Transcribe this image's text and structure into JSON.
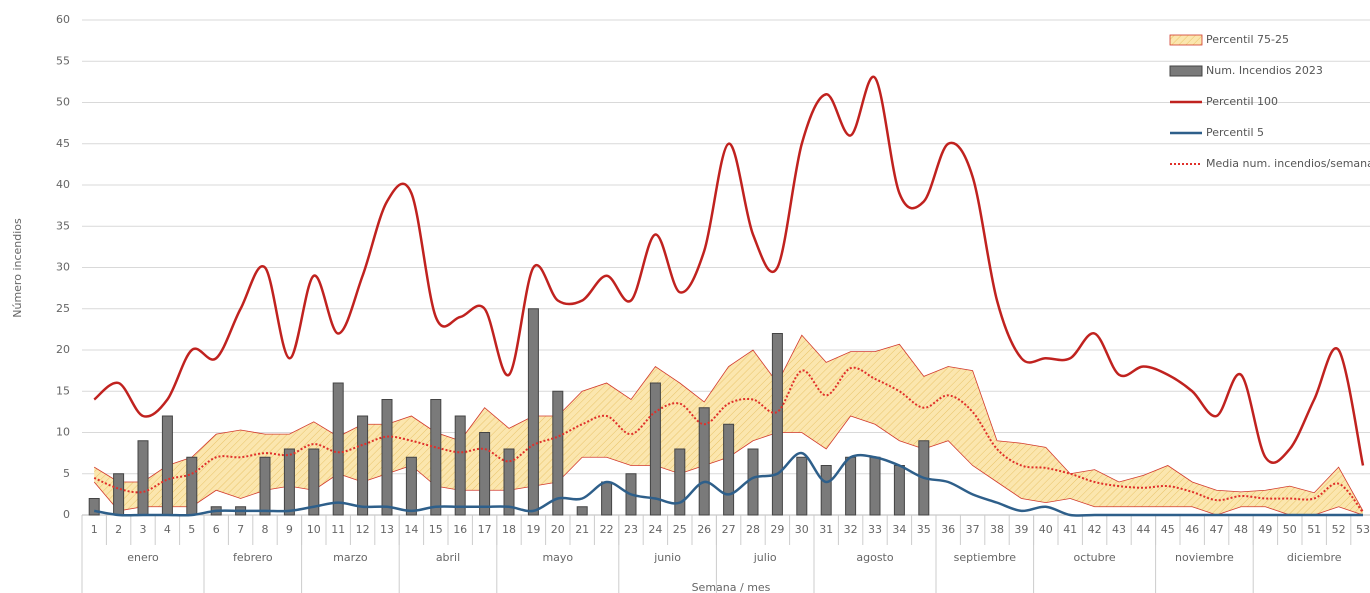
{
  "chart_data": {
    "type": "combo",
    "y_label": "Número incendios",
    "x_label": "Semana / mes",
    "categories": [
      "1",
      "2",
      "3",
      "4",
      "5",
      "6",
      "7",
      "8",
      "9",
      "10",
      "11",
      "12",
      "13",
      "14",
      "15",
      "16",
      "17",
      "18",
      "19",
      "20",
      "21",
      "22",
      "23",
      "24",
      "25",
      "26",
      "27",
      "28",
      "29",
      "30",
      "31",
      "32",
      "33",
      "34",
      "35",
      "36",
      "37",
      "38",
      "39",
      "40",
      "41",
      "42",
      "43",
      "44",
      "45",
      "46",
      "47",
      "48",
      "49",
      "50",
      "51",
      "52",
      "53"
    ],
    "month_groups": [
      {
        "label": "enero",
        "span": 5
      },
      {
        "label": "febrero",
        "span": 4
      },
      {
        "label": "marzo",
        "span": 4
      },
      {
        "label": "abril",
        "span": 4
      },
      {
        "label": "mayo",
        "span": 5
      },
      {
        "label": "junio",
        "span": 4
      },
      {
        "label": "julio",
        "span": 4
      },
      {
        "label": "agosto",
        "span": 5
      },
      {
        "label": "septiembre",
        "span": 4
      },
      {
        "label": "octubre",
        "span": 5
      },
      {
        "label": "noviembre",
        "span": 4
      },
      {
        "label": "diciembre",
        "span": 5
      }
    ],
    "ylim": [
      0,
      60
    ],
    "yticks": [
      0,
      5,
      10,
      15,
      20,
      25,
      30,
      35,
      40,
      45,
      50,
      55,
      60
    ],
    "grid": true,
    "legend": "top-right",
    "band": {
      "name": "Percentil 75-25",
      "color": "#fbe6ae",
      "edge": "#d23a2e",
      "upper": [
        5.8,
        4,
        4,
        6,
        7,
        9.8,
        10.3,
        9.8,
        9.8,
        11.3,
        9.5,
        11,
        11,
        12,
        10,
        9,
        13,
        10.5,
        12,
        12,
        15,
        16,
        14,
        18,
        16,
        13.7,
        18,
        20,
        16,
        21.8,
        18.5,
        19.8,
        19.8,
        20.7,
        16.8,
        18,
        17.5,
        9,
        8.7,
        8.2,
        5,
        5.5,
        4,
        4.8,
        6,
        4,
        3,
        2.8,
        3,
        3.5,
        2.7,
        5.8,
        0.5
      ],
      "lower": [
        4,
        0.5,
        1,
        1,
        1,
        3,
        2,
        3,
        3.5,
        3,
        5,
        4,
        5,
        6,
        3.5,
        3,
        3,
        3,
        3.5,
        4,
        7,
        7,
        6,
        6,
        5,
        6,
        7,
        9,
        10,
        10,
        8,
        12,
        11,
        9,
        8,
        9,
        6,
        4,
        2,
        1.5,
        2,
        1,
        1,
        1,
        1,
        1,
        0,
        1,
        1,
        0,
        0,
        1,
        0
      ]
    },
    "bars": {
      "name": "Num. Incendios 2023",
      "color": "#7a7a7a",
      "values": [
        2,
        5,
        9,
        12,
        7,
        1,
        1,
        7,
        8,
        8,
        16,
        12,
        14,
        7,
        14,
        12,
        10,
        8,
        25,
        15,
        1,
        4,
        5,
        16,
        8,
        13,
        11,
        8,
        22,
        7,
        6,
        7,
        7,
        6,
        9,
        null,
        null,
        null,
        null,
        null,
        null,
        null,
        null,
        null,
        null,
        null,
        null,
        null,
        null,
        null,
        null,
        null,
        null
      ]
    },
    "series": [
      {
        "name": "Percentil 100",
        "color": "#c0221f",
        "style": "solid",
        "values": [
          14,
          16,
          12,
          14,
          20,
          19,
          25,
          30,
          19,
          29,
          22,
          29,
          38,
          39,
          24,
          24,
          25,
          17,
          30,
          26,
          26,
          29,
          26,
          34,
          27,
          32,
          45,
          34,
          30,
          45,
          51,
          46,
          53,
          39,
          38,
          45,
          41,
          26,
          19,
          19,
          19,
          22,
          17,
          18,
          17,
          15,
          12,
          17,
          7,
          8,
          14,
          20,
          6
        ]
      },
      {
        "name": "Percentil 5",
        "color": "#2e5f8a",
        "style": "solid",
        "values": [
          0.5,
          0,
          0,
          0,
          0,
          0.5,
          0.5,
          0.5,
          0.5,
          1,
          1.5,
          1,
          1,
          0.5,
          1,
          1,
          1,
          1,
          0.5,
          2,
          2,
          4,
          2.5,
          2,
          1.5,
          4,
          2.5,
          4.5,
          5,
          7.5,
          4,
          7,
          7,
          6,
          4.5,
          4,
          2.5,
          1.5,
          0.5,
          1,
          0,
          0,
          0,
          0,
          0,
          0,
          0,
          0,
          0,
          0,
          0,
          0,
          0
        ]
      },
      {
        "name": "Media num. incendios/semana",
        "color": "#e0302a",
        "style": "dotted",
        "values": [
          4.5,
          3.2,
          2.8,
          4.3,
          5,
          7,
          7,
          7.5,
          7.3,
          8.6,
          7.6,
          8.5,
          9.5,
          9,
          8.2,
          7.6,
          8,
          6.5,
          8.5,
          9.5,
          11,
          12,
          9.8,
          12.5,
          13.5,
          11,
          13.5,
          14,
          12.5,
          17.5,
          14.5,
          17.8,
          16.5,
          15,
          13,
          14.5,
          12.5,
          8,
          6,
          5.7,
          5,
          4,
          3.5,
          3.3,
          3.5,
          2.8,
          1.8,
          2.3,
          2,
          2,
          2,
          3.8,
          0.3
        ]
      }
    ]
  }
}
